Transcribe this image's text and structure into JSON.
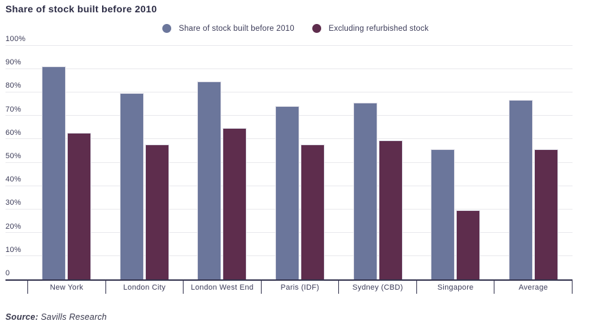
{
  "page": {
    "title": "Share of stock built before 2010",
    "source_label": "Source:",
    "source_value": " Savills Research"
  },
  "colors": {
    "series1": "#6b769b",
    "series2": "#5e2d4d",
    "gridline": "#e9e9ed",
    "axis": "#34344f",
    "text": "#3c3c59"
  },
  "chart_data": {
    "type": "bar",
    "title": "Share of stock built before 2010",
    "categories": [
      "New York",
      "London City",
      "London West End",
      "Paris (IDF)",
      "Sydney (CBD)",
      "Singapore",
      "Average"
    ],
    "series": [
      {
        "name": "Share of stock built before 2010",
        "color": "#6b769b",
        "values": [
          91,
          79.5,
          84.5,
          74,
          75.5,
          55.5,
          76.5
        ]
      },
      {
        "name": "Excluding refurbished stock",
        "color": "#5e2d4d",
        "values": [
          62.5,
          57.5,
          64.5,
          57.5,
          59.5,
          29.5,
          55.5
        ]
      }
    ],
    "ylabel": "",
    "xlabel": "",
    "ylim": [
      0,
      100
    ],
    "y_ticks": [
      "100%",
      "90%",
      "80%",
      "70%",
      "60%",
      "50%",
      "40%",
      "30%",
      "20%",
      "10%",
      "0"
    ],
    "grid": true,
    "legend_position": "top-center"
  }
}
